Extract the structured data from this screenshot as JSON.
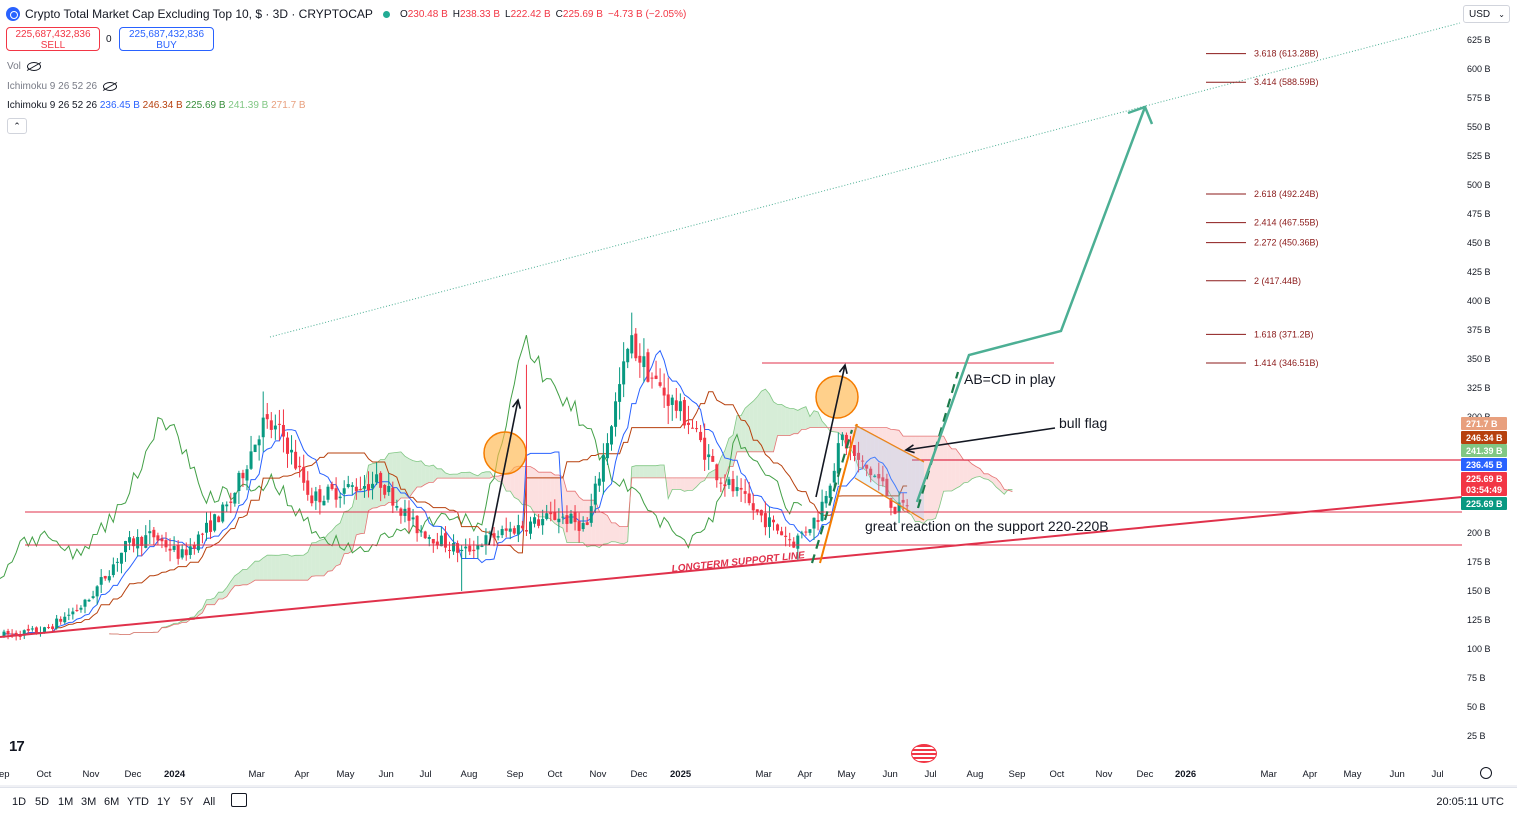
{
  "header": {
    "title": "Crypto Total Market Cap Excluding Top 10, $ · 3D · CRYPTOCAP",
    "open_label": "O",
    "open": "230.48 B",
    "high_label": "H",
    "high": "238.33 B",
    "low_label": "L",
    "low": "222.42 B",
    "close_label": "C",
    "close": "225.69 B",
    "change": "−4.73 B (−2.05%)"
  },
  "trade": {
    "sell_price": "225,687,432,836",
    "sell_label": "SELL",
    "spread": "0",
    "buy_price": "225,687,432,836",
    "buy_label": "BUY"
  },
  "indicators": {
    "vol_label": "Vol",
    "ichimoku_hidden": "Ichimoku 9 26 52 26",
    "ichimoku_label": "Ichimoku 9 26 52 26",
    "ichimoku_values": [
      {
        "text": "236.45 B",
        "color": "#2962ff"
      },
      {
        "text": "246.34 B",
        "color": "#b7410e"
      },
      {
        "text": "225.69 B",
        "color": "#388e3c"
      },
      {
        "text": "241.39 B",
        "color": "#81c784"
      },
      {
        "text": "271.7 B",
        "color": "#e8a07e"
      }
    ],
    "collapse_glyph": "⌃"
  },
  "currency": "USD",
  "currency_caret": "⌄",
  "colors": {
    "up": "#089981",
    "down": "#f23645",
    "tenkan": "#2962ff",
    "kijun": "#b7410e",
    "lagging": "#43a047",
    "cloud_bull": "#a5d6a7",
    "cloud_bear": "#f8bbbb",
    "support": "#e0314b",
    "projection": "#4caf94",
    "fib": "#8b1a1a",
    "orange": "#f57c00"
  },
  "bottom_bar": {
    "timeframes": [
      "1D",
      "5D",
      "1M",
      "3M",
      "6M",
      "YTD",
      "1Y",
      "5Y",
      "All"
    ],
    "clock": "20:05:11 UTC"
  },
  "chart_data": {
    "type": "candlestick",
    "title": "Crypto Total Market Cap Excluding Top 10, $ · 3D · CRYPTOCAP",
    "y_unit": "B",
    "y_ticks": [
      "625 B",
      "600 B",
      "575 B",
      "550 B",
      "525 B",
      "500 B",
      "475 B",
      "450 B",
      "425 B",
      "400 B",
      "375 B",
      "350 B",
      "325 B",
      "300 B",
      "200 B",
      "175 B",
      "150 B",
      "125 B",
      "100 B",
      "75 B",
      "50 B",
      "25 B"
    ],
    "x_ticks": [
      "ep",
      "Oct",
      "Nov",
      "Dec",
      "2024",
      "Mar",
      "Apr",
      "May",
      "Jun",
      "Jul",
      "Aug",
      "Sep",
      "Oct",
      "Nov",
      "Dec",
      "2025",
      "Mar",
      "Apr",
      "May",
      "Jun",
      "Jul",
      "Aug",
      "Sep",
      "Oct",
      "Nov",
      "Dec",
      "2026",
      "Mar",
      "Apr",
      "May",
      "Jun",
      "Jul"
    ],
    "grid": false,
    "price_trend": [
      [
        "2023-09-01",
        112
      ],
      [
        "2023-10-01",
        116
      ],
      [
        "2023-11-01",
        140
      ],
      [
        "2023-12-01",
        190
      ],
      [
        "2023-12-20",
        198
      ],
      [
        "2024-01-10",
        180
      ],
      [
        "2024-02-15",
        225
      ],
      [
        "2024-03-10",
        295
      ],
      [
        "2024-03-25",
        285
      ],
      [
        "2024-04-15",
        230
      ],
      [
        "2024-05-10",
        238
      ],
      [
        "2024-06-05",
        245
      ],
      [
        "2024-07-01",
        205
      ],
      [
        "2024-08-05",
        183
      ],
      [
        "2024-08-25",
        196
      ],
      [
        "2024-09-15",
        205
      ],
      [
        "2024-10-15",
        215
      ],
      [
        "2024-11-05",
        205
      ],
      [
        "2024-11-25",
        305
      ],
      [
        "2024-12-07",
        365
      ],
      [
        "2024-12-25",
        330
      ],
      [
        "2025-01-20",
        295
      ],
      [
        "2025-02-10",
        250
      ],
      [
        "2025-03-10",
        218
      ],
      [
        "2025-04-07",
        192
      ],
      [
        "2025-04-25",
        215
      ],
      [
        "2025-05-13",
        282
      ],
      [
        "2025-05-25",
        260
      ],
      [
        "2025-06-10",
        245
      ],
      [
        "2025-06-22",
        218
      ],
      [
        "2025-06-30",
        226
      ]
    ],
    "price_labels": [
      {
        "text": "271.7 B",
        "color": "#e8a07e"
      },
      {
        "text": "246.34 B",
        "color": "#b7410e"
      },
      {
        "text": "241.39 B",
        "color": "#81c784"
      },
      {
        "text": "236.45 B",
        "color": "#2962ff"
      },
      {
        "text": "225.69 B",
        "color": "#f23645"
      },
      {
        "text": "03:54:49",
        "color": "#f23645"
      },
      {
        "text": "225.69 B",
        "color": "#089981"
      }
    ],
    "fib_levels": [
      {
        "ratio": "3.618",
        "value": "613.28B"
      },
      {
        "ratio": "3.414",
        "value": "588.59B"
      },
      {
        "ratio": "2.618",
        "value": "492.24B"
      },
      {
        "ratio": "2.414",
        "value": "467.55B"
      },
      {
        "ratio": "2.272",
        "value": "450.36B"
      },
      {
        "ratio": "2",
        "value": "417.44B"
      },
      {
        "ratio": "1.618",
        "value": "371.2B"
      },
      {
        "ratio": "1.414",
        "value": "346.51B"
      }
    ],
    "annotations": {
      "abcd": "AB=CD in play",
      "bull_flag": "bull flag",
      "support_note": "great reaction on the support 220-220B",
      "support_line": "LONGTERM SUPPORT LINE"
    }
  }
}
